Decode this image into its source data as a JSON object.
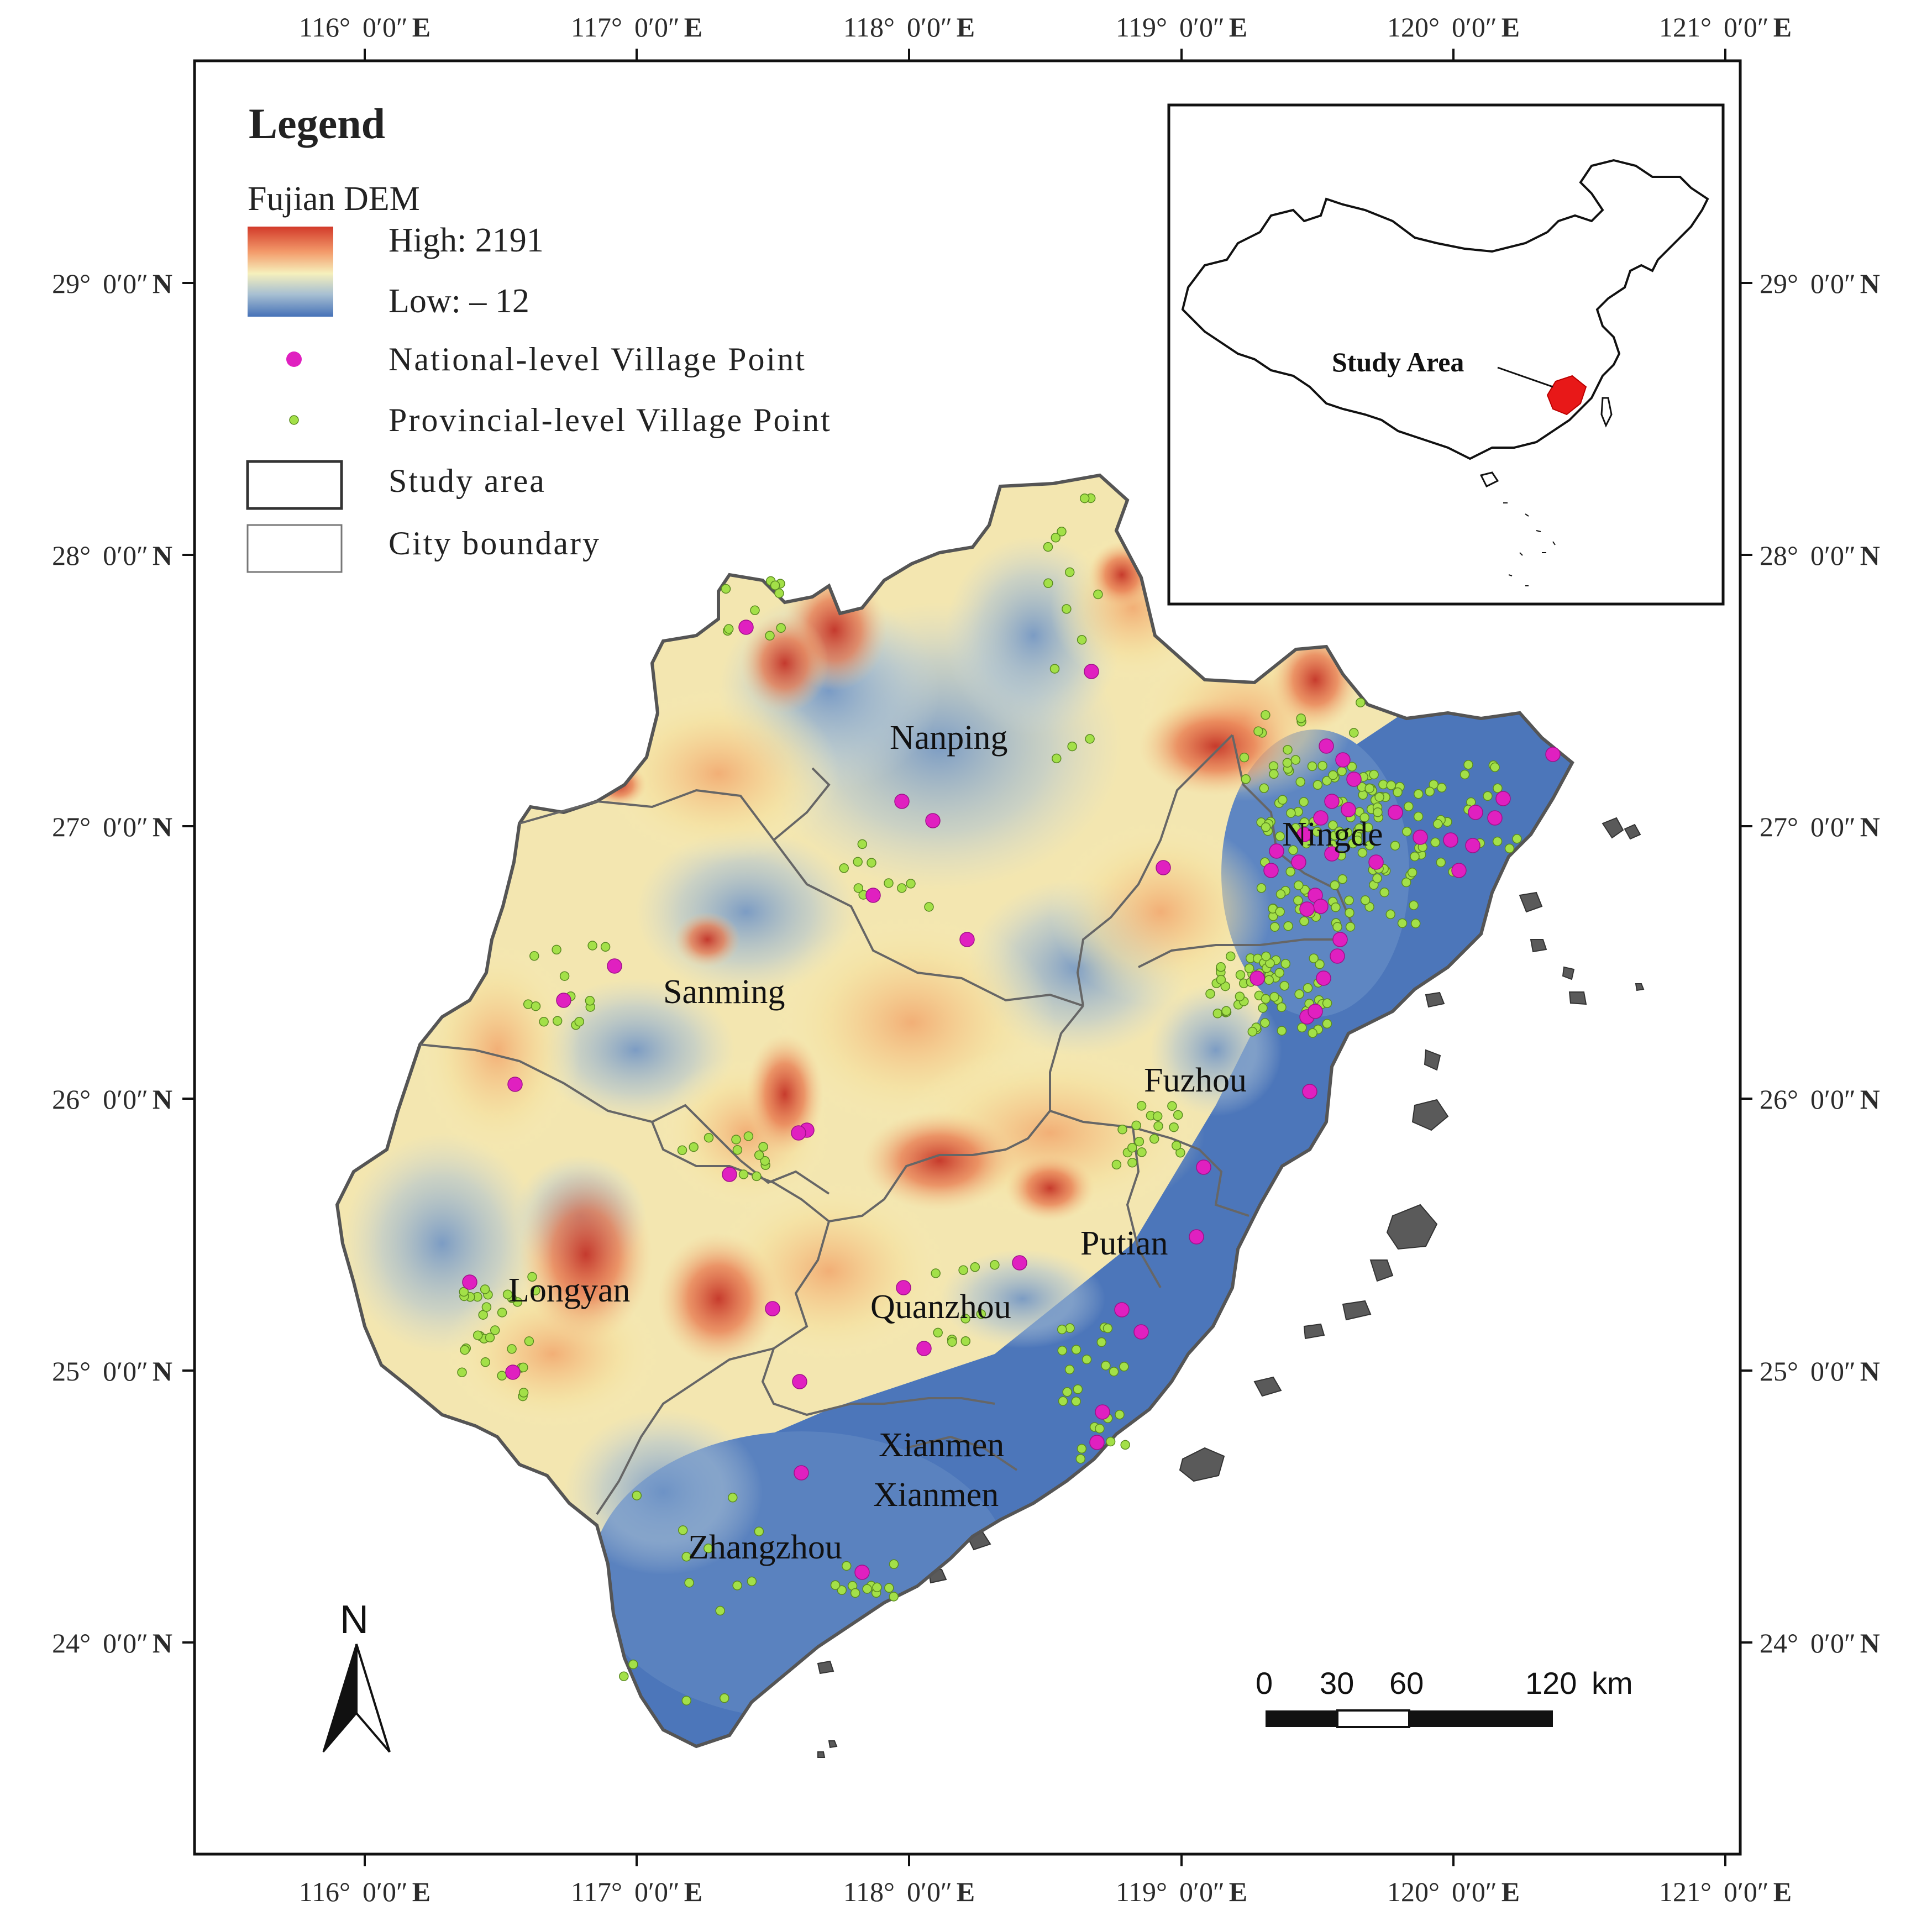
{
  "map": {
    "lon_labels": [
      {
        "deg": "116°",
        "min": "0′0″",
        "hem": "E"
      },
      {
        "deg": "117°",
        "min": "0′0″",
        "hem": "E"
      },
      {
        "deg": "118°",
        "min": "0′0″",
        "hem": "E"
      },
      {
        "deg": "119°",
        "min": "0′0″",
        "hem": "E"
      },
      {
        "deg": "120°",
        "min": "0′0″",
        "hem": "E"
      },
      {
        "deg": "121°",
        "min": "0′0″",
        "hem": "E"
      }
    ],
    "lat_labels": [
      {
        "deg": "29°",
        "min": "0′0″",
        "hem": "N"
      },
      {
        "deg": "28°",
        "min": "0′0″",
        "hem": "N"
      },
      {
        "deg": "27°",
        "min": "0′0″",
        "hem": "N"
      },
      {
        "deg": "26°",
        "min": "0′0″",
        "hem": "N"
      },
      {
        "deg": "25°",
        "min": "0′0″",
        "hem": "N"
      },
      {
        "deg": "24°",
        "min": "0′0″",
        "hem": "N"
      }
    ],
    "cities": [
      "Nanping",
      "Ningde",
      "Sanming",
      "Fuzhou",
      "Putian",
      "Longyan",
      "Quanzhou",
      "Xianmen",
      "Xianmen",
      "Zhangzhou"
    ],
    "legend": {
      "title": "Legend",
      "dem_title": "Fujian DEM",
      "high": "High: 2191",
      "low": "Low: – 12",
      "national": "National-level Village Point",
      "provincial": "Provincial-level Village Point",
      "study_area": "Study area",
      "city_boundary": "City boundary"
    },
    "inset": {
      "label": "Study Area"
    },
    "scale": {
      "ticks": [
        "0",
        "30",
        "60",
        "120"
      ],
      "unit": "km"
    },
    "north": "N",
    "colors": {
      "dem_high": "#c8342a",
      "dem_mid_high": "#f3a46b",
      "dem_mid": "#f7efb8",
      "dem_mid_low": "#9fb8cf",
      "dem_low": "#4a74b8",
      "national_point": "#e020c0",
      "provincial_point": "#a3e048",
      "boundary": "#555555"
    }
  }
}
